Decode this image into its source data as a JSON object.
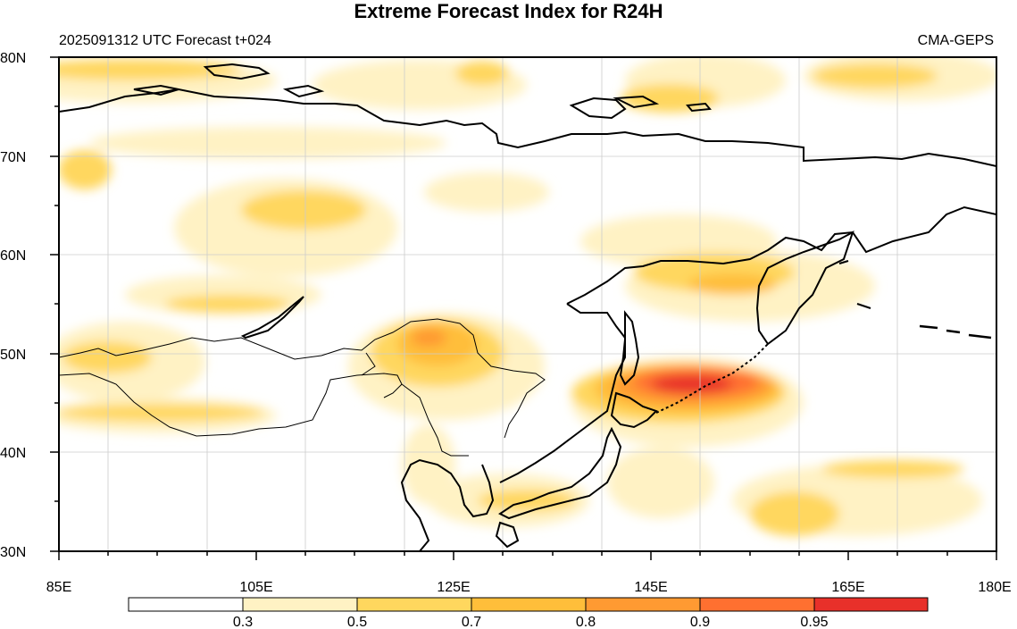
{
  "title": "Extreme Forecast Index for R24H",
  "subtitle_left": "2025091312 UTC Forecast t+024",
  "subtitle_right": "CMA-GEPS",
  "lat_ticks": [
    {
      "label": "80N",
      "lat": 80
    },
    {
      "label": "70N",
      "lat": 70
    },
    {
      "label": "60N",
      "lat": 60
    },
    {
      "label": "50N",
      "lat": 50
    },
    {
      "label": "40N",
      "lat": 40
    },
    {
      "label": "30N",
      "lat": 30
    }
  ],
  "lon_ticks": [
    {
      "label": "85E",
      "lon": 85
    },
    {
      "label": "105E",
      "lon": 105
    },
    {
      "label": "125E",
      "lon": 125
    },
    {
      "label": "145E",
      "lon": 145
    },
    {
      "label": "165E",
      "lon": 165
    },
    {
      "label": "180E",
      "lon": 180
    }
  ],
  "colorbar": {
    "labels": [
      "0.3",
      "0.5",
      "0.7",
      "0.8",
      "0.9",
      "0.95"
    ],
    "colors": [
      "#ffffff",
      "#fff2c4",
      "#ffd75e",
      "#ffbe3a",
      "#ff9a32",
      "#ff7030",
      "#e8302a"
    ]
  },
  "chart_data": {
    "type": "heatmap",
    "title": "Extreme Forecast Index for R24H",
    "xlim": [
      85,
      180
    ],
    "ylim": [
      30,
      80
    ],
    "levels": [
      0.3,
      0.5,
      0.7,
      0.8,
      0.9,
      0.95
    ],
    "regions": [
      {
        "lon": 148,
        "lat": 46.5,
        "rlon": 10,
        "rlat": 3,
        "value": 0.95
      },
      {
        "lon": 140,
        "lat": 48,
        "rlon": 6,
        "rlat": 4,
        "value": 0.7
      },
      {
        "lon": 123,
        "lat": 49,
        "rlon": 5,
        "rlat": 3.5,
        "value": 0.8
      },
      {
        "lon": 153,
        "lat": 57,
        "rlon": 8,
        "rlat": 3,
        "value": 0.8
      },
      {
        "lon": 95,
        "lat": 43.5,
        "rlon": 10,
        "rlat": 1.5,
        "value": 0.7
      },
      {
        "lon": 117,
        "lat": 64,
        "rlon": 10,
        "rlat": 4,
        "value": 0.7
      },
      {
        "lon": 87,
        "lat": 69,
        "rlon": 3,
        "rlat": 2,
        "value": 0.7
      },
      {
        "lon": 119,
        "lat": 78.5,
        "rlon": 4,
        "rlat": 1.2,
        "value": 0.7
      },
      {
        "lon": 154,
        "lat": 78,
        "rlon": 8,
        "rlat": 2,
        "value": 0.7
      },
      {
        "lon": 165,
        "lat": 34,
        "rlon": 10,
        "rlat": 3,
        "value": 0.7
      },
      {
        "lon": 135,
        "lat": 34,
        "rlon": 5,
        "rlat": 2,
        "value": 0.5
      }
    ]
  }
}
